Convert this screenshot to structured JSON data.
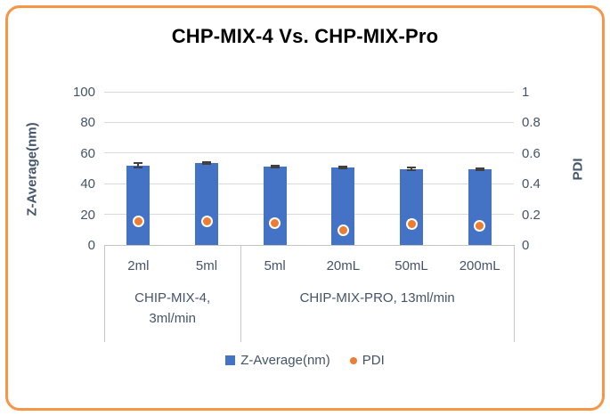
{
  "frame": {
    "border_color": "#F79646"
  },
  "title": "CHP-MIX-4 Vs. CHP-MIX-Pro",
  "chart_data": {
    "type": "bar",
    "subtype": "combo-bar-scatter",
    "title": "CHP-MIX-4 Vs. CHP-MIX-Pro",
    "categories": [
      "2ml",
      "5ml",
      "5ml",
      "20mL",
      "50mL",
      "200mL"
    ],
    "groups": [
      {
        "label_lines": [
          "CHIP-MIX-4,",
          "3ml/min"
        ],
        "span": [
          0,
          1
        ]
      },
      {
        "label_lines": [
          "CHIP-MIX-PRO, 13ml/min"
        ],
        "span": [
          2,
          5
        ]
      }
    ],
    "series": [
      {
        "name": "Z-Average(nm)",
        "type": "bar",
        "axis": "left",
        "color": "#4472C4",
        "values": [
          52.0,
          53.4,
          51.0,
          50.6,
          49.6,
          49.4
        ],
        "errors": [
          1.3,
          0.7,
          0.7,
          0.5,
          0.7,
          0.5
        ]
      },
      {
        "name": "PDI",
        "type": "scatter",
        "axis": "right",
        "color": "#ED7D31",
        "values": [
          0.152,
          0.152,
          0.145,
          0.098,
          0.135,
          0.126
        ],
        "errors": [
          0.018,
          0.02,
          0.012,
          0.012,
          0.025,
          0.016
        ]
      }
    ],
    "left_axis": {
      "title": "Z-Average(nm)",
      "min": 0,
      "max": 100,
      "ticks": [
        "0",
        "20",
        "40",
        "60",
        "80",
        "100"
      ]
    },
    "right_axis": {
      "title": "PDI",
      "min": 0,
      "max": 1,
      "ticks": [
        "0",
        "0.2",
        "0.4",
        "0.6",
        "0.8",
        "1"
      ]
    },
    "legend": {
      "entries": [
        "Z-Average(nm)",
        "PDI"
      ],
      "position": "bottom"
    },
    "grid": true,
    "colors": {
      "bar": "#4472C4",
      "marker": "#ED7D31",
      "gridline": "#D9D9D9",
      "axis_line": "#C6C6C6",
      "axis_text": "#44546A",
      "error_bar": "#404040",
      "marker_error_bar": "#FFFFFF",
      "title_text": "#000000",
      "frame_border": "#F79646"
    }
  }
}
